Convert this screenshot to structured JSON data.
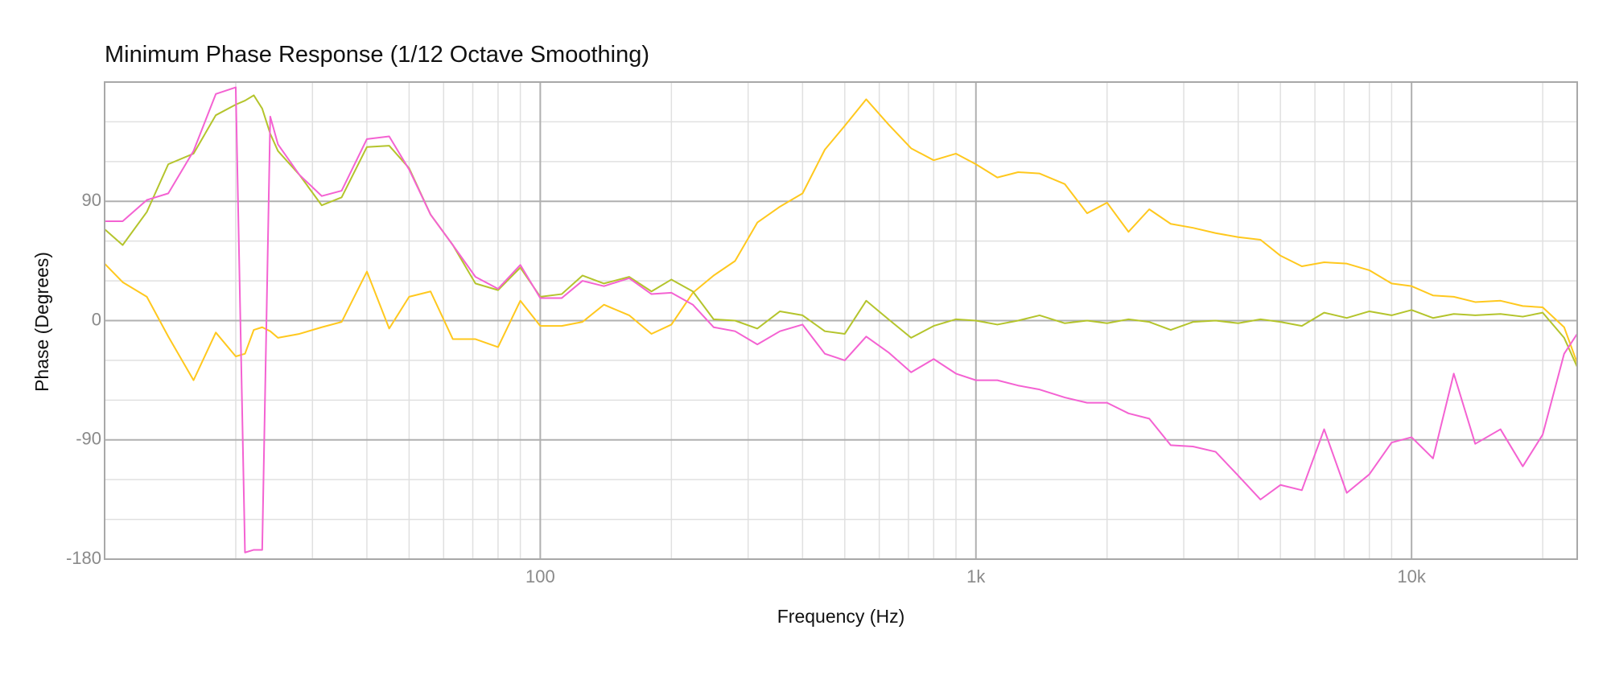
{
  "chart_data": {
    "type": "line",
    "title": "Minimum Phase Response",
    "subtitle": "(1/12 Octave Smoothing)",
    "x_label": "Frequency (Hz)",
    "y_label": "Phase (Degrees)",
    "xscale": "log",
    "xlim": [
      10,
      24000
    ],
    "xticks": [
      {
        "value": 100,
        "label": "100"
      },
      {
        "value": 1000,
        "label": "1k"
      },
      {
        "value": 10000,
        "label": "10k"
      }
    ],
    "x_minor_gridlines": [
      20,
      30,
      40,
      50,
      60,
      70,
      80,
      90,
      200,
      300,
      400,
      500,
      600,
      700,
      800,
      900,
      2000,
      3000,
      4000,
      5000,
      6000,
      7000,
      8000,
      9000,
      20000
    ],
    "ylim": [
      -180,
      180
    ],
    "yticks": [
      -180,
      -90,
      0,
      90
    ],
    "y_minor_gridlines": [
      -150,
      -120,
      -60,
      -30,
      30,
      60,
      120,
      150,
      180
    ],
    "grid": true,
    "x": [
      10,
      11,
      12.5,
      14,
      16,
      18,
      20,
      21,
      22,
      23,
      24,
      25,
      28,
      31.5,
      35,
      40,
      45,
      50,
      56,
      63,
      71,
      80,
      90,
      100,
      112,
      125,
      140,
      160,
      180,
      200,
      224,
      250,
      280,
      315,
      355,
      400,
      450,
      500,
      560,
      630,
      710,
      800,
      900,
      1000,
      1120,
      1250,
      1400,
      1600,
      1800,
      2000,
      2240,
      2500,
      2800,
      3150,
      3550,
      4000,
      4500,
      5000,
      5600,
      6300,
      7100,
      8000,
      9000,
      10000,
      11200,
      12500,
      14000,
      16000,
      18000,
      20000,
      22400,
      24000
    ],
    "series": [
      {
        "color": "#ffc81e",
        "values": [
          43,
          29,
          18,
          -12,
          -45,
          -9,
          -27,
          -25,
          -7,
          -5,
          -8,
          -13,
          -10,
          -5,
          -1,
          37,
          -6,
          18,
          22,
          -14,
          -14,
          -20,
          15,
          -4,
          -4,
          -1,
          12,
          4,
          -10,
          -3,
          21,
          34,
          45,
          74,
          86,
          96,
          129,
          147,
          167,
          148,
          130,
          121,
          126,
          118,
          108,
          112,
          111,
          103,
          81,
          89,
          67,
          84,
          73,
          70,
          66,
          63,
          61,
          49,
          41,
          44,
          43,
          38,
          28,
          26,
          19,
          18,
          14,
          15,
          11,
          10,
          -5,
          -32
        ]
      },
      {
        "color": "#b4c42c",
        "values": [
          69,
          57,
          82,
          118,
          126,
          155,
          163,
          166,
          170,
          160,
          141,
          128,
          110,
          87,
          93,
          131,
          132,
          115,
          80,
          57,
          28,
          23,
          40,
          18,
          20,
          34,
          28,
          33,
          22,
          31,
          22,
          1,
          0,
          -6,
          7,
          4,
          -8,
          -10,
          15,
          1,
          -13,
          -4,
          1,
          0,
          -3,
          0,
          4,
          -2,
          0,
          -2,
          1,
          -1,
          -7,
          -1,
          0,
          -2,
          1,
          -1,
          -4,
          6,
          2,
          7,
          4,
          8,
          2,
          5,
          4,
          5,
          3,
          6,
          -13,
          -35
        ]
      },
      {
        "color": "#f462d2",
        "values": [
          75,
          75,
          91,
          96,
          128,
          171,
          176,
          -175,
          -173,
          -173,
          154,
          133,
          110,
          94,
          98,
          137,
          139,
          114,
          80,
          57,
          33,
          24,
          42,
          17,
          17,
          30,
          26,
          32,
          20,
          21,
          12,
          -5,
          -8,
          -18,
          -8,
          -3,
          -25,
          -30,
          -12,
          -24,
          -39,
          -29,
          -40,
          -45,
          -45,
          -49,
          -52,
          -58,
          -62,
          -62,
          -70,
          -74,
          -94,
          -95,
          -99,
          -117,
          -135,
          -124,
          -128,
          -82,
          -130,
          -116,
          -92,
          -88,
          -104,
          -40,
          -93,
          -82,
          -110,
          -86,
          -25,
          -10
        ]
      }
    ]
  }
}
